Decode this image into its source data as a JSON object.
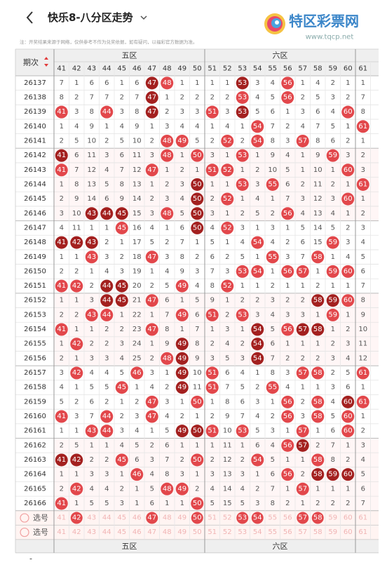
{
  "header": {
    "title": "快乐8-八分区走势",
    "logo": "特区彩票网",
    "url": "www.tqcp.net"
  },
  "notice": "注：开奖结果来源于网络，仅供参考不作为兑奖依据，如有疑问，以福彩官方数据为准。",
  "table": {
    "issue_label": "期次",
    "zones": [
      "五区",
      "六区"
    ],
    "columns": [
      41,
      42,
      43,
      44,
      45,
      46,
      47,
      48,
      49,
      50,
      51,
      52,
      53,
      54,
      55,
      56,
      57,
      58,
      59,
      60,
      61
    ],
    "rows": [
      {
        "issue": "26137",
        "cells": [
          7,
          1,
          6,
          6,
          1,
          6,
          {
            "ball": 47,
            "dark": true
          },
          {
            "ball": 48
          },
          1,
          1,
          1,
          1,
          {
            "ball": 53,
            "dark": true
          },
          3,
          4,
          {
            "ball": 56
          },
          1,
          4,
          2,
          1,
          1
        ]
      },
      {
        "issue": "26138",
        "cells": [
          8,
          2,
          7,
          7,
          2,
          7,
          {
            "ball": 47,
            "dark": true
          },
          1,
          2,
          2,
          2,
          2,
          {
            "ball": 53
          },
          4,
          5,
          {
            "ball": 56
          },
          2,
          5,
          3,
          2,
          7
        ]
      },
      {
        "issue": "26139",
        "cells": [
          {
            "ball": 41
          },
          3,
          8,
          {
            "ball": 44
          },
          3,
          8,
          {
            "ball": 47,
            "dark": true
          },
          2,
          3,
          3,
          {
            "ball": 51
          },
          3,
          {
            "ball": 53,
            "dark": true
          },
          5,
          6,
          1,
          3,
          6,
          4,
          {
            "ball": 60
          },
          8
        ]
      },
      {
        "issue": "26140",
        "cells": [
          1,
          4,
          9,
          1,
          4,
          9,
          1,
          3,
          4,
          4,
          1,
          4,
          1,
          {
            "ball": 54
          },
          7,
          2,
          4,
          7,
          5,
          1,
          {
            "ball": 61
          }
        ]
      },
      {
        "issue": "26141",
        "cells": [
          2,
          5,
          10,
          2,
          5,
          10,
          2,
          {
            "ball": 48
          },
          {
            "ball": 49
          },
          5,
          2,
          {
            "ball": 52
          },
          2,
          {
            "ball": 54
          },
          8,
          3,
          {
            "ball": 57
          },
          8,
          6,
          2,
          1
        ]
      },
      {
        "issue": "26142",
        "cells": [
          {
            "ball": 41,
            "dark": true
          },
          6,
          11,
          3,
          6,
          11,
          3,
          {
            "ball": 48
          },
          1,
          {
            "ball": 50
          },
          3,
          1,
          {
            "ball": 53
          },
          1,
          9,
          4,
          1,
          9,
          {
            "ball": 59
          },
          3,
          2
        ]
      },
      {
        "issue": "26143",
        "cells": [
          {
            "ball": 41
          },
          7,
          12,
          4,
          7,
          12,
          {
            "ball": 47
          },
          1,
          2,
          1,
          {
            "ball": 51
          },
          {
            "ball": 52
          },
          1,
          2,
          10,
          5,
          1,
          10,
          1,
          {
            "ball": 60
          },
          3
        ]
      },
      {
        "issue": "26144",
        "cells": [
          1,
          8,
          13,
          5,
          8,
          13,
          1,
          2,
          3,
          {
            "ball": 50,
            "dark": true
          },
          1,
          1,
          {
            "ball": 53
          },
          3,
          {
            "ball": 55
          },
          6,
          2,
          11,
          2,
          1,
          {
            "ball": 61
          }
        ]
      },
      {
        "issue": "26145",
        "cells": [
          2,
          9,
          14,
          6,
          9,
          14,
          2,
          3,
          4,
          {
            "ball": 50,
            "dark": true
          },
          2,
          {
            "ball": 52
          },
          1,
          4,
          1,
          7,
          3,
          12,
          3,
          {
            "ball": 60
          },
          1
        ]
      },
      {
        "issue": "26146",
        "cells": [
          3,
          10,
          {
            "ball": 43,
            "dark": true
          },
          {
            "ball": 44,
            "dark": true
          },
          {
            "ball": 45,
            "dark": true
          },
          15,
          3,
          {
            "ball": 48
          },
          5,
          {
            "ball": 50,
            "dark": true
          },
          3,
          1,
          2,
          5,
          2,
          {
            "ball": 56
          },
          4,
          13,
          4,
          1,
          2
        ]
      },
      {
        "issue": "26147",
        "cells": [
          4,
          11,
          1,
          1,
          {
            "ball": 45
          },
          16,
          4,
          1,
          6,
          {
            "ball": 50,
            "dark": true
          },
          4,
          {
            "ball": 52
          },
          3,
          1,
          3,
          1,
          5,
          14,
          5,
          2,
          3
        ]
      },
      {
        "issue": "26148",
        "cells": [
          {
            "ball": 41,
            "dark": true
          },
          {
            "ball": 42,
            "dark": true
          },
          {
            "ball": 43,
            "dark": true
          },
          2,
          1,
          17,
          5,
          2,
          7,
          1,
          5,
          1,
          4,
          {
            "ball": 54
          },
          4,
          2,
          6,
          15,
          {
            "ball": 59
          },
          3,
          4
        ]
      },
      {
        "issue": "26149",
        "cells": [
          1,
          1,
          {
            "ball": 43
          },
          3,
          2,
          18,
          {
            "ball": 47
          },
          3,
          8,
          2,
          6,
          2,
          5,
          1,
          {
            "ball": 55
          },
          3,
          7,
          {
            "ball": 58
          },
          1,
          4,
          5
        ]
      },
      {
        "issue": "26150",
        "cells": [
          2,
          2,
          1,
          4,
          3,
          19,
          1,
          4,
          9,
          3,
          7,
          3,
          {
            "ball": 53
          },
          {
            "ball": 54
          },
          1,
          {
            "ball": 56
          },
          {
            "ball": 57
          },
          1,
          {
            "ball": 59
          },
          {
            "ball": 60
          },
          6
        ]
      },
      {
        "issue": "26151",
        "cells": [
          {
            "ball": 41
          },
          {
            "ball": 42
          },
          2,
          {
            "ball": 44,
            "dark": true
          },
          {
            "ball": 45,
            "dark": true
          },
          20,
          2,
          5,
          {
            "ball": 49
          },
          4,
          8,
          {
            "ball": 52
          },
          1,
          1,
          2,
          1,
          1,
          2,
          1,
          1,
          7
        ]
      },
      {
        "issue": "26152",
        "cells": [
          1,
          1,
          3,
          {
            "ball": 44,
            "dark": true
          },
          {
            "ball": 45,
            "dark": true
          },
          21,
          {
            "ball": 47
          },
          6,
          1,
          5,
          9,
          1,
          2,
          2,
          3,
          2,
          2,
          {
            "ball": 58,
            "dark": true
          },
          {
            "ball": 59,
            "dark": true
          },
          {
            "ball": 60
          },
          8
        ]
      },
      {
        "issue": "26153",
        "cells": [
          2,
          2,
          {
            "ball": 43
          },
          {
            "ball": 44
          },
          1,
          22,
          1,
          7,
          {
            "ball": 49
          },
          6,
          {
            "ball": 51
          },
          2,
          {
            "ball": 53
          },
          3,
          4,
          3,
          3,
          1,
          {
            "ball": 59
          },
          1,
          9
        ]
      },
      {
        "issue": "26154",
        "cells": [
          {
            "ball": 41
          },
          1,
          1,
          2,
          2,
          23,
          {
            "ball": 47
          },
          8,
          1,
          7,
          1,
          3,
          1,
          {
            "ball": 54,
            "dark": true
          },
          5,
          {
            "ball": 56
          },
          {
            "ball": 57,
            "dark": true
          },
          {
            "ball": 58,
            "dark": true
          },
          1,
          2,
          10
        ]
      },
      {
        "issue": "26155",
        "cells": [
          1,
          {
            "ball": 42
          },
          2,
          2,
          3,
          24,
          1,
          9,
          {
            "ball": 49,
            "dark": true
          },
          8,
          2,
          4,
          2,
          {
            "ball": 54,
            "dark": true
          },
          6,
          1,
          1,
          1,
          2,
          3,
          11
        ]
      },
      {
        "issue": "26156",
        "cells": [
          2,
          1,
          3,
          3,
          4,
          25,
          2,
          {
            "ball": 48
          },
          {
            "ball": 49,
            "dark": true
          },
          9,
          3,
          5,
          3,
          {
            "ball": 54,
            "dark": true
          },
          7,
          2,
          2,
          2,
          3,
          4,
          12
        ]
      },
      {
        "issue": "26157",
        "cells": [
          3,
          {
            "ball": 42
          },
          4,
          4,
          5,
          {
            "ball": 46
          },
          3,
          1,
          {
            "ball": 49,
            "dark": true
          },
          10,
          {
            "ball": 51
          },
          6,
          4,
          1,
          8,
          3,
          {
            "ball": 57
          },
          {
            "ball": 58
          },
          2,
          5,
          {
            "ball": 61
          }
        ]
      },
      {
        "issue": "26158",
        "cells": [
          4,
          1,
          5,
          5,
          {
            "ball": 45
          },
          1,
          4,
          2,
          {
            "ball": 49,
            "dark": true
          },
          11,
          {
            "ball": 51
          },
          7,
          5,
          2,
          {
            "ball": 55
          },
          4,
          1,
          1,
          3,
          6,
          1
        ]
      },
      {
        "issue": "26159",
        "cells": [
          5,
          2,
          6,
          2,
          1,
          2,
          {
            "ball": 47
          },
          3,
          1,
          {
            "ball": 50
          },
          1,
          8,
          6,
          3,
          1,
          {
            "ball": 56
          },
          2,
          {
            "ball": 58
          },
          4,
          {
            "ball": 60,
            "dark": true
          },
          {
            "ball": 61
          }
        ]
      },
      {
        "issue": "26160",
        "cells": [
          {
            "ball": 41
          },
          3,
          7,
          {
            "ball": 44
          },
          2,
          3,
          {
            "ball": 47
          },
          4,
          2,
          1,
          2,
          9,
          7,
          4,
          2,
          {
            "ball": 56
          },
          3,
          {
            "ball": 58
          },
          5,
          {
            "ball": 60
          },
          1
        ]
      },
      {
        "issue": "26161",
        "cells": [
          1,
          1,
          {
            "ball": 43
          },
          {
            "ball": 44
          },
          3,
          4,
          1,
          5,
          {
            "ball": 49,
            "dark": true
          },
          {
            "ball": 50,
            "dark": true
          },
          {
            "ball": 51
          },
          10,
          {
            "ball": 53
          },
          5,
          3,
          1,
          {
            "ball": 57
          },
          1,
          6,
          {
            "ball": 60
          },
          2
        ]
      },
      {
        "issue": "26162",
        "cells": [
          2,
          5,
          1,
          1,
          4,
          5,
          2,
          6,
          1,
          1,
          1,
          11,
          1,
          6,
          4,
          {
            "ball": 56
          },
          {
            "ball": 57,
            "dark": true
          },
          2,
          7,
          1,
          3
        ]
      },
      {
        "issue": "26163",
        "cells": [
          {
            "ball": 41,
            "dark": true
          },
          {
            "ball": 42,
            "dark": true
          },
          2,
          2,
          {
            "ball": 45
          },
          6,
          3,
          7,
          2,
          {
            "ball": 50
          },
          2,
          12,
          2,
          {
            "ball": 54
          },
          5,
          1,
          1,
          {
            "ball": 58
          },
          8,
          2,
          4
        ]
      },
      {
        "issue": "26164",
        "cells": [
          1,
          1,
          3,
          3,
          1,
          {
            "ball": 46
          },
          4,
          8,
          3,
          1,
          3,
          13,
          3,
          1,
          6,
          {
            "ball": 56
          },
          2,
          {
            "ball": 58,
            "dark": true
          },
          {
            "ball": 59,
            "dark": true
          },
          {
            "ball": 60,
            "dark": true
          },
          5
        ]
      },
      {
        "issue": "26165",
        "cells": [
          2,
          {
            "ball": 42
          },
          4,
          4,
          2,
          1,
          5,
          {
            "ball": 48
          },
          {
            "ball": 49
          },
          2,
          4,
          14,
          4,
          2,
          7,
          1,
          {
            "ball": 57
          },
          1,
          1,
          1,
          6
        ]
      },
      {
        "issue": "26166",
        "cells": [
          {
            "ball": 41
          },
          1,
          5,
          5,
          3,
          1,
          6,
          1,
          1,
          {
            "ball": 50
          },
          5,
          15,
          5,
          3,
          8,
          2,
          1,
          2,
          2,
          2,
          7
        ]
      }
    ],
    "pick_rows": [
      {
        "label": "选号",
        "selected": [
          1,
          6,
          9,
          12,
          13,
          16,
          17
        ]
      },
      {
        "label": "选号"
      }
    ],
    "footer": "-"
  }
}
